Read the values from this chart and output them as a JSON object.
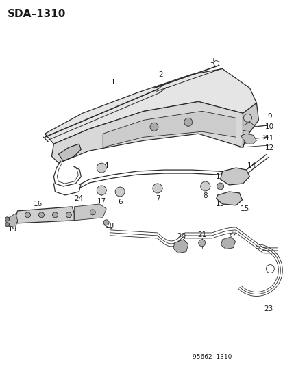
{
  "title": "SDA–1310",
  "footer": "95662  1310",
  "bg_color": "#ffffff",
  "line_color": "#2a2a2a",
  "text_color": "#1a1a1a",
  "title_fontsize": 11,
  "label_fontsize": 7.5,
  "footer_fontsize": 6.5
}
